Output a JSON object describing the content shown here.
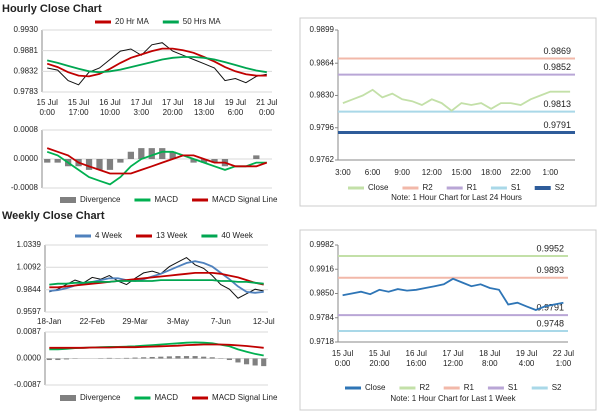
{
  "headings": [
    "Hourly Close Chart",
    "Weekly Close Chart"
  ],
  "chart_data": [
    {
      "type": "line",
      "grid": true,
      "ylim": [
        0.9783,
        0.993
      ],
      "yticks": [
        {
          "value": 0.993,
          "label": "0.9930"
        },
        0.9881,
        0.9832,
        0.9783
      ],
      "categories": [
        "15 Jul\n0:00",
        null,
        null,
        "15 Jul\n17:00",
        null,
        null,
        "16 Jul\n10:00",
        null,
        null,
        "17 Jul\n3:00",
        null,
        null,
        "17 Jul\n20:00",
        null,
        null,
        "18 Jul\n13:00",
        null,
        null,
        "19 Jul\n6:00",
        null,
        null,
        "21 Jul\n0:00"
      ],
      "series": [
        {
          "color": "#111111",
          "values": [
            0.984,
            0.9835,
            0.981,
            0.98,
            0.983,
            0.984,
            0.986,
            0.988,
            0.9885,
            0.987,
            0.9895,
            0.99,
            0.988,
            0.987,
            0.986,
            0.985,
            0.984,
            0.981,
            0.9815,
            0.9805,
            0.982,
            0.9825
          ]
        },
        {
          "name": "20 Hr MA",
          "color": "#c00000",
          "values": [
            0.985,
            0.9842,
            0.983,
            0.9822,
            0.982,
            0.9826,
            0.9838,
            0.9852,
            0.9864,
            0.9872,
            0.988,
            0.9886,
            0.9886,
            0.9882,
            0.9876,
            0.9866,
            0.9855,
            0.9842,
            0.9832,
            0.9825,
            0.9822,
            0.9822
          ]
        },
        {
          "name": "50 Hrs MA",
          "color": "#00a651",
          "values": [
            0.9858,
            0.9852,
            0.9845,
            0.9838,
            0.9832,
            0.983,
            0.9832,
            0.9836,
            0.9842,
            0.9848,
            0.9854,
            0.986,
            0.9864,
            0.9866,
            0.9866,
            0.9864,
            0.986,
            0.9854,
            0.9847,
            0.984,
            0.9834,
            0.983
          ]
        }
      ]
    },
    {
      "type": "line",
      "grid": true,
      "ylim": [
        -0.0008,
        0.0008
      ],
      "yticks": [
        0.0008,
        {
          "value": 0,
          "label": "0.0000"
        },
        -0.0008
      ],
      "series": [
        {
          "name": "Divergence",
          "type": "bar",
          "color": "#808080",
          "values": [
            -0.0001,
            -0.0001,
            -0.0002,
            -0.0002,
            -0.0003,
            -0.0003,
            -0.0003,
            -0.0001,
            0.0002,
            0.0003,
            0.0003,
            0.0003,
            0.0002,
            0,
            -0.0001,
            -0.0001,
            -0.0001,
            -0.0002,
            0,
            0,
            0.0001,
            0
          ]
        },
        {
          "name": "MACD",
          "color": "#00b050",
          "values": [
            0.0002,
            0.0001,
            -0.0001,
            -0.0003,
            -0.0005,
            -0.0006,
            -0.0007,
            -0.0005,
            -0.0002,
            0,
            0.0001,
            0.0002,
            0.0002,
            0.0001,
            0,
            -0.0001,
            -0.0002,
            -0.0003,
            -0.0002,
            -0.0002,
            -0.0001,
            -0.0001
          ]
        },
        {
          "name": "MACD Signal Line",
          "color": "#c00000",
          "values": [
            0.0003,
            0.0002,
            0.0001,
            -0.0001,
            -0.0002,
            -0.0003,
            -0.0004,
            -0.0004,
            -0.0004,
            -0.0003,
            -0.0002,
            -0.0001,
            0,
            0.0001,
            0.0001,
            0,
            -0.0001,
            -0.0001,
            -0.0002,
            -0.0002,
            -0.0002,
            -0.0001
          ]
        }
      ]
    },
    {
      "type": "line",
      "grid": false,
      "ylim": [
        0.9762,
        0.9899
      ],
      "yticks": [
        0.9899,
        0.9864,
        {
          "value": 0.983,
          "label": "0.9830"
        },
        0.9796,
        0.9762
      ],
      "categories": [
        "3:00",
        null,
        null,
        "6:00",
        null,
        null,
        "9:00",
        null,
        null,
        "12:00",
        null,
        null,
        "15:00",
        null,
        null,
        "18:00",
        null,
        null,
        "22:00",
        null,
        null,
        "1:00",
        null,
        null
      ],
      "series": [
        {
          "name": "Close",
          "color": "#c3e0a8",
          "values": [
            0.9822,
            0.9826,
            0.983,
            0.9836,
            0.9828,
            0.9832,
            0.9826,
            0.9824,
            0.982,
            0.9826,
            0.9822,
            0.9814,
            0.9822,
            0.982,
            0.9822,
            0.9816,
            0.9822,
            0.9822,
            0.982,
            0.9826,
            0.983,
            0.9834,
            0.9834,
            0.9834
          ]
        }
      ],
      "levels": [
        {
          "name": "R2",
          "color": "#f2b8a9",
          "value": 0.9869
        },
        {
          "name": "R1",
          "color": "#b9a6d6",
          "value": 0.9852
        },
        {
          "name": "S1",
          "color": "#a9d8e8",
          "value": 0.9813
        },
        {
          "name": "S2",
          "color": "#2e5c9a",
          "value": 0.9791,
          "line_width": 3
        }
      ],
      "note": "Note: 1 Hour Chart for Last 24 Hours"
    },
    {
      "type": "line",
      "grid": true,
      "ylim": [
        0.9597,
        1.0339
      ],
      "yticks": [
        1.0339,
        1.0092,
        0.9844,
        0.9597
      ],
      "categories": [
        "18-Jan",
        null,
        null,
        null,
        null,
        "22-Feb",
        null,
        null,
        null,
        null,
        "29-Mar",
        null,
        null,
        null,
        null,
        "3-May",
        null,
        null,
        null,
        null,
        "7-Jun",
        null,
        null,
        null,
        null,
        "12-Jul"
      ],
      "series": [
        {
          "color": "#111111",
          "values": [
            0.982,
            0.985,
            0.99,
            0.995,
            0.992,
            0.998,
            0.996,
            1.0,
            0.994,
            0.99,
            0.997,
            1.003,
            1.005,
            1.002,
            1.01,
            1.015,
            1.02,
            1.012,
            1.008,
            1.0,
            0.99,
            0.985,
            0.975,
            0.98,
            0.985,
            0.983
          ]
        },
        {
          "name": "4 Week",
          "color": "#4f81bd",
          "values": [
            0.983,
            0.984,
            0.986,
            0.989,
            0.991,
            0.993,
            0.995,
            0.997,
            0.997,
            0.995,
            0.994,
            0.996,
            0.999,
            1.002,
            1.006,
            1.01,
            1.014,
            1.016,
            1.014,
            1.01,
            1.003,
            0.996,
            0.988,
            0.982,
            0.981,
            0.982
          ]
        },
        {
          "name": "13 Week",
          "color": "#c00000",
          "values": [
            0.987,
            0.987,
            0.988,
            0.989,
            0.99,
            0.991,
            0.992,
            0.993,
            0.994,
            0.995,
            0.996,
            0.997,
            0.998,
            0.999,
            1.0,
            1.001,
            1.002,
            1.003,
            1.003,
            1.003,
            1.002,
            1.0,
            0.998,
            0.995,
            0.992,
            0.99
          ]
        },
        {
          "name": "40 Week",
          "color": "#00a651",
          "values": [
            0.99,
            0.991,
            0.991,
            0.992,
            0.992,
            0.993,
            0.993,
            0.993,
            0.994,
            0.994,
            0.994,
            0.994,
            0.994,
            0.995,
            0.995,
            0.995,
            0.995,
            0.995,
            0.995,
            0.995,
            0.994,
            0.994,
            0.993,
            0.993,
            0.992,
            0.991
          ]
        }
      ]
    },
    {
      "type": "line",
      "grid": true,
      "ylim": [
        -0.0087,
        0.0087
      ],
      "yticks": [
        0.0087,
        {
          "value": 0,
          "label": "0.0000"
        },
        -0.0087
      ],
      "series": [
        {
          "name": "Divergence",
          "type": "bar",
          "color": "#808080",
          "values": [
            -0.0005,
            -0.0005,
            -0.0003,
            -0.0001,
            0,
            0,
            0.0001,
            0.0002,
            0.0001,
            0.0002,
            0.0003,
            0.0004,
            0.0005,
            0.0006,
            0.0007,
            0.0008,
            0.0008,
            0.0008,
            0.0006,
            0.0004,
            -0.0001,
            -0.0005,
            -0.0013,
            -0.0019,
            -0.0023,
            -0.0025
          ]
        },
        {
          "name": "MACD",
          "color": "#00b050",
          "values": [
            0.003,
            0.003,
            0.0032,
            0.0034,
            0.0035,
            0.0036,
            0.0037,
            0.0038,
            0.0038,
            0.0039,
            0.004,
            0.0042,
            0.0044,
            0.0046,
            0.0048,
            0.005,
            0.0052,
            0.0053,
            0.0052,
            0.005,
            0.0045,
            0.004,
            0.003,
            0.0022,
            0.0015,
            0.001
          ]
        },
        {
          "name": "MACD Signal Line",
          "color": "#c00000",
          "values": [
            0.0035,
            0.0035,
            0.0035,
            0.0035,
            0.0035,
            0.0036,
            0.0036,
            0.0036,
            0.0037,
            0.0037,
            0.0037,
            0.0038,
            0.0039,
            0.004,
            0.0041,
            0.0042,
            0.0044,
            0.0045,
            0.0046,
            0.0046,
            0.0046,
            0.0045,
            0.0043,
            0.0041,
            0.0038,
            0.0035
          ]
        }
      ]
    },
    {
      "type": "line",
      "grid": false,
      "ylim": [
        0.9718,
        0.9982
      ],
      "yticks": [
        0.9982,
        0.9916,
        {
          "value": 0.985,
          "label": "0.9850"
        },
        0.9784,
        0.9718
      ],
      "categories": [
        "15 Jul\n0:00",
        null,
        null,
        null,
        "15 Jul\n20:00",
        null,
        null,
        null,
        "16 Jul\n16:00",
        null,
        null,
        null,
        "17 Jul\n12:00",
        null,
        null,
        null,
        "18 Jul\n8:00",
        null,
        null,
        null,
        "19 Jul\n4:00",
        null,
        null,
        null,
        "22 Jul\n1:00"
      ],
      "series": [
        {
          "name": "Close",
          "color": "#2e75b6",
          "values": [
            0.9845,
            0.985,
            0.9855,
            0.9848,
            0.986,
            0.9855,
            0.9862,
            0.9858,
            0.986,
            0.9865,
            0.987,
            0.9875,
            0.989,
            0.988,
            0.987,
            0.9875,
            0.9865,
            0.986,
            0.982,
            0.9825,
            0.9815,
            0.9805,
            0.9815,
            0.982,
            0.9825
          ]
        }
      ],
      "levels": [
        {
          "name": "R2",
          "color": "#c3e0a8",
          "value": 0.9952
        },
        {
          "name": "R1",
          "color": "#f2b8a9",
          "value": 0.9893
        },
        {
          "name": "S1",
          "color": "#b9a6d6",
          "value": 0.9791
        },
        {
          "name": "S2",
          "color": "#a9d8e8",
          "value": 0.9748
        }
      ],
      "note": "Note: 1 Hour Chart for Last 1 Week"
    }
  ]
}
